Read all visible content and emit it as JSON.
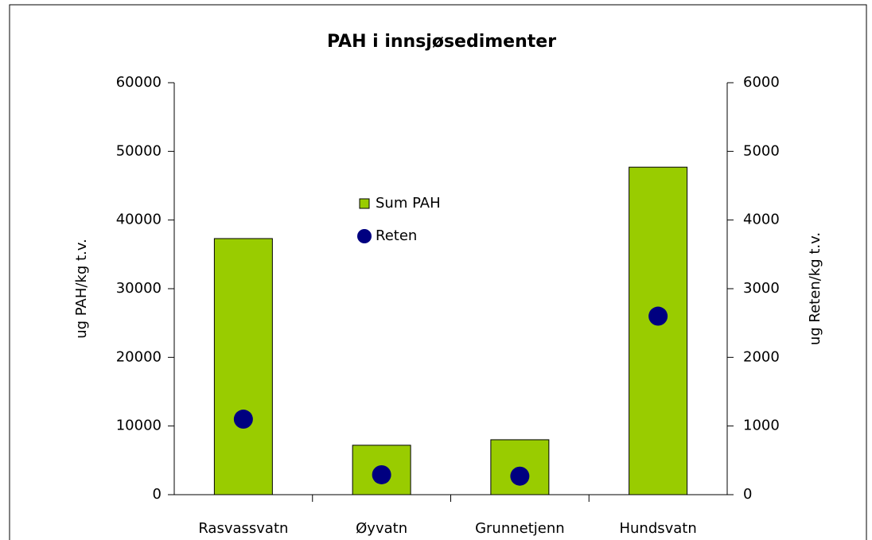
{
  "chart_data": {
    "type": "bar",
    "title": "PAH i innsjøsedimenter",
    "y_label": "ug PAH/kg t.v.",
    "y2_label": "ug Reten/kg t.v.",
    "categories": [
      "Rasvassvatn",
      "Øyvatn",
      "Grunnetjenn",
      "Hundsvatn"
    ],
    "series": [
      {
        "name": "Sum PAH",
        "type": "bar",
        "color": "#99cc00",
        "values": [
          37300,
          7200,
          8000,
          47700
        ]
      },
      {
        "name": "Reten",
        "type": "scatter",
        "axis": "y2",
        "color": "#000080",
        "values": [
          1100,
          290,
          270,
          2600
        ]
      }
    ],
    "ylim": [
      0,
      60000
    ],
    "yticks": [
      0,
      10000,
      20000,
      30000,
      40000,
      50000,
      60000
    ],
    "y2lim": [
      0,
      6000
    ],
    "y2ticks": [
      0,
      1000,
      2000,
      3000,
      4000,
      5000,
      6000
    ],
    "grid": false,
    "legend": "center"
  }
}
